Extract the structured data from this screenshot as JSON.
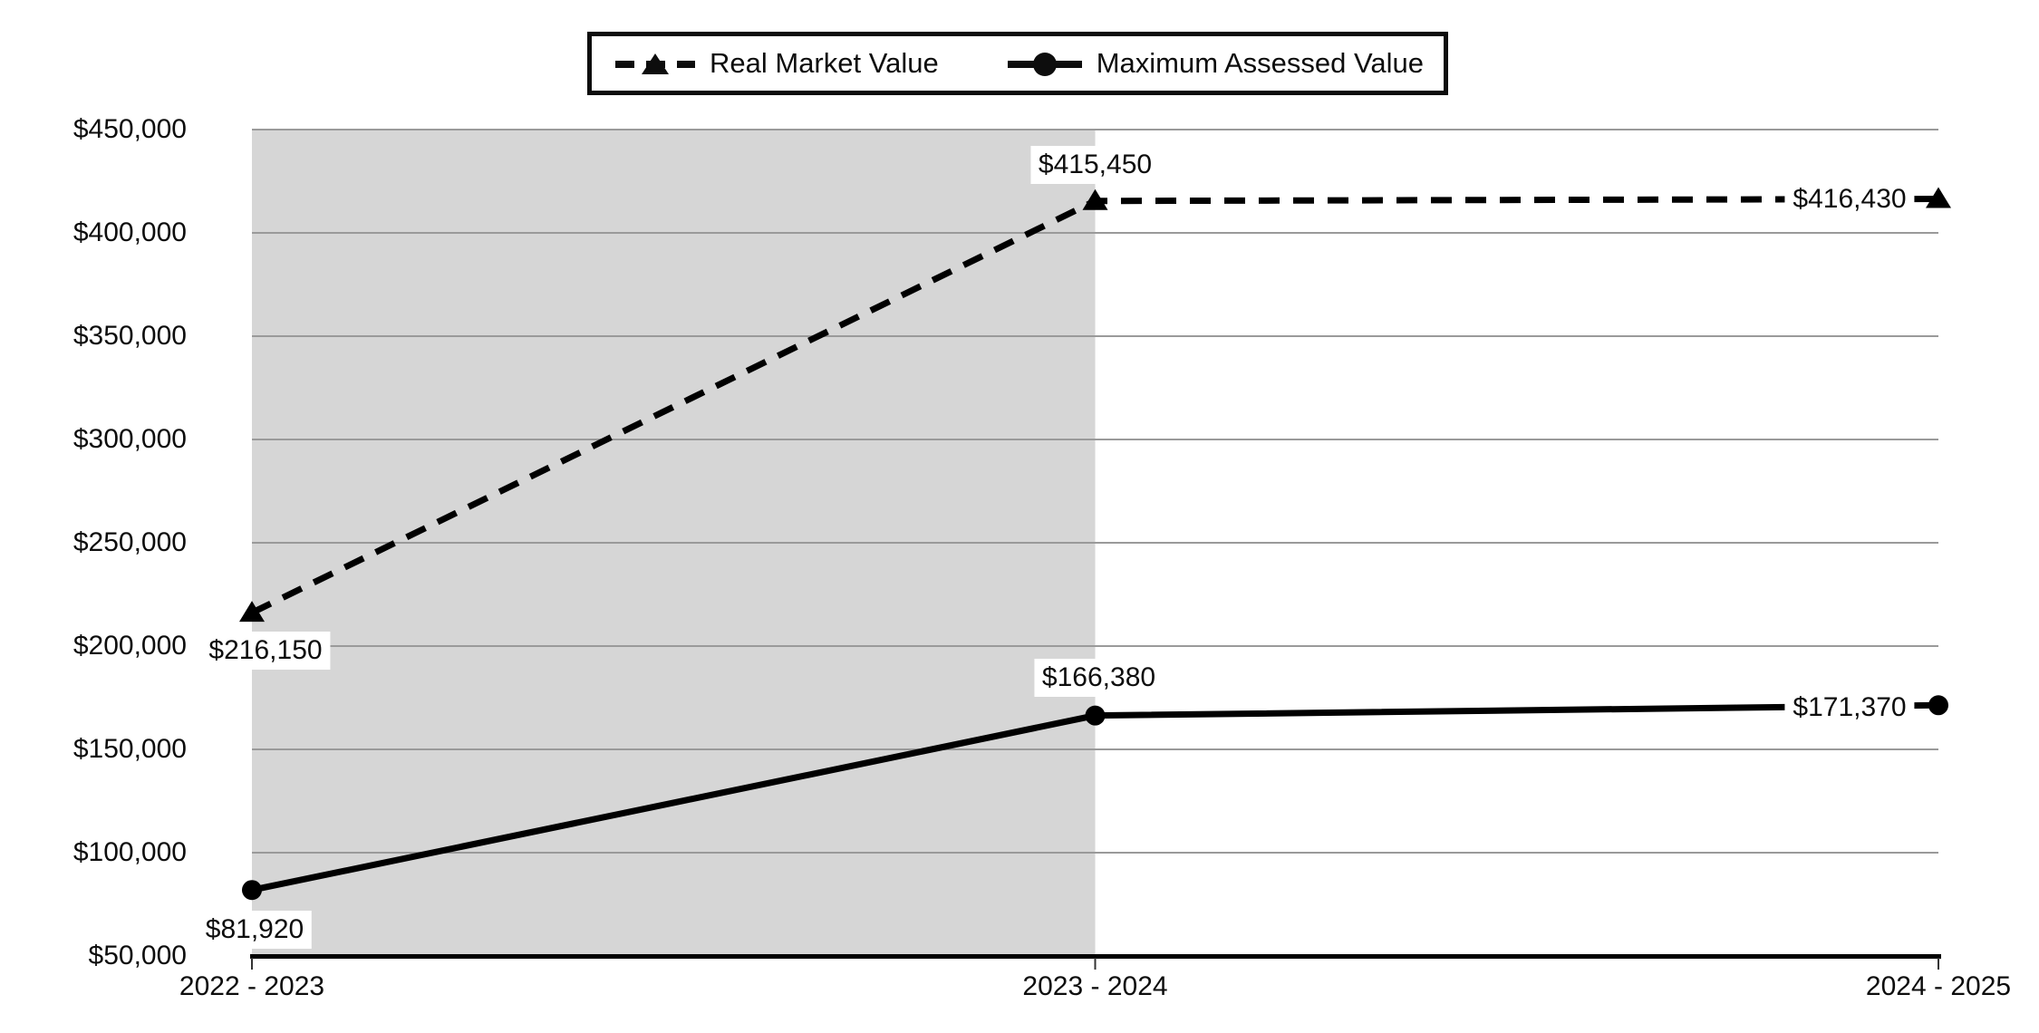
{
  "chart_data": {
    "type": "line",
    "title": "",
    "categories": [
      "2022 - 2023",
      "2023 - 2024",
      "2024 - 2025"
    ],
    "series": [
      {
        "name": "Real Market Value",
        "line_style": "dashed",
        "marker": "triangle",
        "values": [
          216150,
          415450,
          416430
        ],
        "data_labels": [
          "$216,150",
          "$415,450",
          "$416,430"
        ]
      },
      {
        "name": "Maximum Assessed Value",
        "line_style": "solid",
        "marker": "circle",
        "values": [
          81920,
          166380,
          171370
        ],
        "data_labels": [
          "$81,920",
          "$166,380",
          "$171,370"
        ]
      }
    ],
    "y_axis": {
      "min": 50000,
      "max": 450000,
      "step": 50000,
      "tick_labels_top_to_bottom": [
        "$450,000",
        "$400,000",
        "$350,000",
        "$300,000",
        "$250,000",
        "$200,000",
        "$150,000",
        "$100,000",
        "$50,000"
      ]
    },
    "grid": true,
    "legend_position": "top-center",
    "highlight_band": {
      "covers_categories": [
        "2022 - 2023",
        "2023 - 2024"
      ],
      "color": "#d6d6d6"
    },
    "colors": {
      "series_line": "#000000",
      "gridline": "#9a9a9a",
      "axis_line": "#000000",
      "tick_mark": "#333333",
      "text": "#0d0d0d",
      "plot_background": "#ffffff",
      "data_label_background": "#ffffff"
    }
  }
}
